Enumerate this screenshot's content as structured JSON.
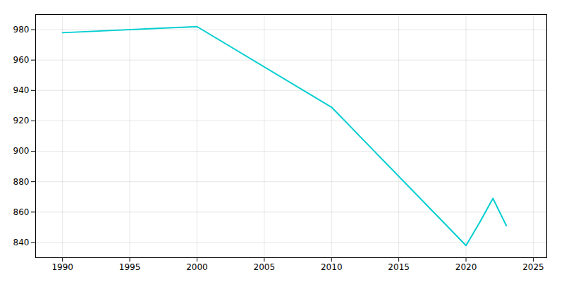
{
  "chart_data": {
    "type": "line",
    "x": [
      1990,
      2000,
      2010,
      2020,
      2021,
      2022,
      2023
    ],
    "values": [
      978,
      982,
      929,
      838,
      853,
      869,
      851
    ],
    "color": "#00CED1",
    "xlim": [
      1988,
      2026
    ],
    "ylim": [
      830,
      990
    ],
    "xticks": [
      1990,
      1995,
      2000,
      2005,
      2010,
      2015,
      2020,
      2025
    ],
    "yticks": [
      840,
      860,
      880,
      900,
      920,
      940,
      960,
      980
    ],
    "grid": true
  }
}
